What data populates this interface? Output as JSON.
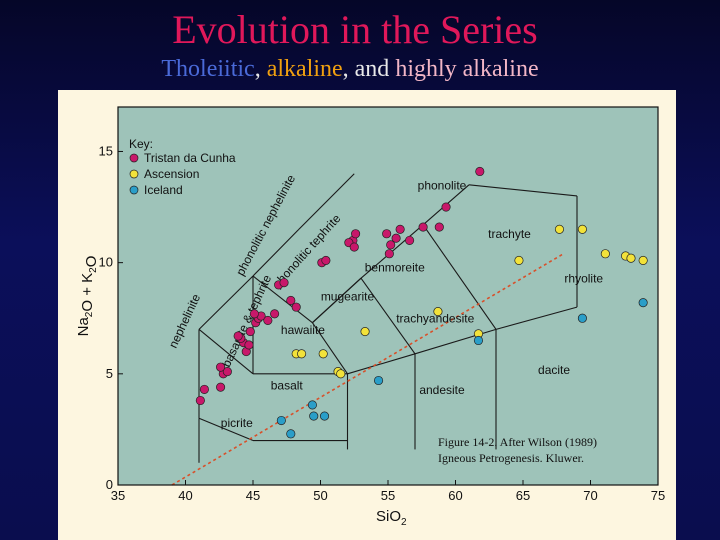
{
  "title": "Evolution in the Series",
  "subtitle": {
    "part1": "Tholeiitic",
    "sep1": ", ",
    "part2": "alkaline",
    "sep2": ", and ",
    "part3": "highly alkaline"
  },
  "colors": {
    "title": "#e0185a",
    "tholeiitic": "#4a6ad8",
    "alkaline": "#f0a010",
    "highly_alkaline": "#f2b6c6",
    "plot_background": "#9ec3b9",
    "tristan": "#c8186a",
    "ascension": "#f2e23a",
    "iceland": "#2a9ec8",
    "dividing_line": "#d8502a"
  },
  "chart_data": {
    "type": "scatter",
    "xlabel": "SiO2",
    "ylabel": "Na2O + K2O",
    "xlim": [
      35,
      75
    ],
    "ylim": [
      0,
      17
    ],
    "xticks": [
      35,
      40,
      45,
      50,
      55,
      60,
      65,
      70,
      75
    ],
    "yticks": [
      0,
      5,
      10,
      15
    ],
    "legend_title": "Key:",
    "legend_position": "top-left",
    "series": [
      {
        "name": "Tristan da Cunha",
        "color": "#c8186a",
        "x": [
          41.1,
          41.4,
          42.6,
          42.8,
          43.1,
          42.6,
          44.3,
          44.5,
          44.7,
          44.1,
          43.9,
          44.8,
          45.2,
          45.4,
          45.6,
          45.1,
          46.1,
          46.6,
          46.9,
          47.3,
          47.8,
          48.2,
          50.1,
          50.4,
          52.4,
          52.6,
          52.1,
          52.5,
          55.6,
          55.9,
          55.1,
          55.2,
          54.9,
          56.6,
          57.6,
          58.8,
          59.3,
          61.8
        ],
        "y": [
          3.8,
          4.3,
          4.4,
          5.0,
          5.1,
          5.3,
          6.4,
          6.0,
          6.3,
          6.6,
          6.7,
          6.9,
          7.3,
          7.5,
          7.6,
          7.7,
          7.4,
          7.7,
          9.0,
          9.1,
          8.3,
          8.0,
          10.0,
          10.1,
          11.0,
          11.3,
          10.9,
          10.7,
          11.1,
          11.5,
          10.4,
          10.8,
          11.3,
          11.0,
          11.6,
          11.6,
          12.5,
          14.1
        ]
      },
      {
        "name": "Ascension",
        "color": "#f2e23a",
        "x": [
          48.2,
          48.6,
          50.2,
          51.3,
          51.5,
          53.3,
          58.7,
          61.7,
          64.7,
          67.7,
          69.4,
          71.1,
          72.6,
          73.0,
          73.9
        ],
        "y": [
          5.9,
          5.9,
          5.9,
          5.1,
          5.0,
          6.9,
          7.8,
          6.8,
          10.1,
          11.5,
          11.5,
          10.4,
          10.3,
          10.2,
          10.1
        ]
      },
      {
        "name": "Iceland",
        "color": "#2a9ec8",
        "x": [
          47.1,
          47.8,
          49.4,
          49.5,
          50.3,
          54.3,
          61.7,
          69.4,
          73.9
        ],
        "y": [
          2.9,
          2.3,
          3.6,
          3.1,
          3.1,
          4.7,
          6.5,
          7.5,
          8.2
        ]
      }
    ],
    "field_labels": [
      {
        "text": "phonolite",
        "x": 59,
        "y": 13.3
      },
      {
        "text": "trachyte",
        "x": 64,
        "y": 11.1
      },
      {
        "text": "benmoreite",
        "x": 55.5,
        "y": 9.6
      },
      {
        "text": "rhyolite",
        "x": 69.5,
        "y": 9.1
      },
      {
        "text": "mugearite",
        "x": 52,
        "y": 8.3
      },
      {
        "text": "trachyandesite",
        "x": 58.5,
        "y": 7.3
      },
      {
        "text": "hawaiite",
        "x": 48.7,
        "y": 6.8
      },
      {
        "text": "dacite",
        "x": 67.3,
        "y": 5.0
      },
      {
        "text": "basalt",
        "x": 47.5,
        "y": 4.3
      },
      {
        "text": "andesite",
        "x": 59,
        "y": 4.1
      },
      {
        "text": "picrite",
        "x": 43.8,
        "y": 2.6
      },
      {
        "text": "phonolitic nephelinite",
        "x": 46.2,
        "y": 11.6,
        "rotate": -62
      },
      {
        "text": "phonolitic tephrite",
        "x": 49.2,
        "y": 10.4,
        "rotate": -48
      },
      {
        "text": "basanite & tephrite",
        "x": 44.8,
        "y": 7.3,
        "rotate": -65
      },
      {
        "text": "nephelinite",
        "x": 40.2,
        "y": 7.3,
        "rotate": -65
      }
    ],
    "caption_line1": "Figure 14-2. After Wilson (1989)",
    "caption_line2": "Igneous Petrogenesis. Kluwer."
  }
}
